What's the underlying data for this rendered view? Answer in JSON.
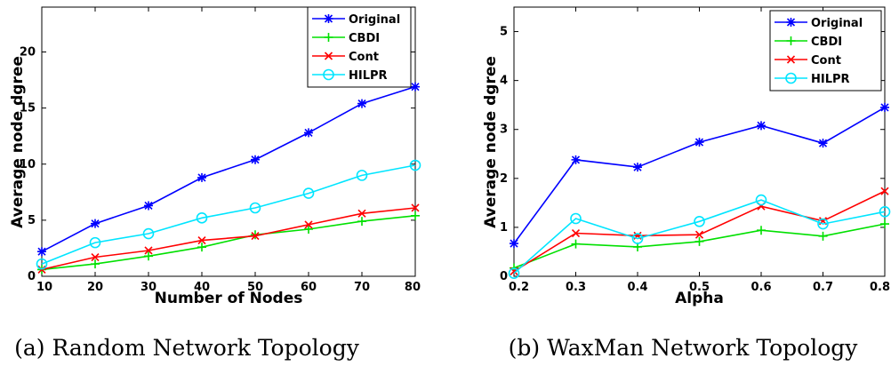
{
  "chart_data": [
    {
      "type": "line",
      "caption": "(a) Random Network Topology",
      "title": "",
      "xlabel": "Number of Nodes",
      "ylabel": "Average node dgree",
      "xlim": [
        10,
        80
      ],
      "ylim": [
        0,
        24
      ],
      "xticks": [
        10,
        20,
        30,
        40,
        50,
        60,
        70,
        80
      ],
      "yticks": [
        0,
        5,
        10,
        15,
        20
      ],
      "legend_position": "top-right",
      "grid": false,
      "x": [
        10,
        20,
        30,
        40,
        50,
        60,
        70,
        80
      ],
      "series": [
        {
          "name": "Original",
          "color": "#0000ff",
          "marker": "asterisk",
          "values": [
            2.2,
            4.7,
            6.3,
            8.8,
            10.4,
            12.8,
            15.4,
            16.9
          ]
        },
        {
          "name": "CBDI",
          "color": "#00e000",
          "marker": "plus",
          "values": [
            0.6,
            1.1,
            1.8,
            2.6,
            3.7,
            4.2,
            4.9,
            5.4
          ]
        },
        {
          "name": "Cont",
          "color": "#ff0000",
          "marker": "x",
          "values": [
            0.6,
            1.7,
            2.3,
            3.2,
            3.6,
            4.6,
            5.6,
            6.1
          ]
        },
        {
          "name": "HILPR",
          "color": "#00e5ff",
          "marker": "circle",
          "values": [
            1.1,
            3.0,
            3.8,
            5.2,
            6.1,
            7.4,
            9.0,
            9.9
          ]
        }
      ]
    },
    {
      "type": "line",
      "caption": "(b) WaxMan Network Topology",
      "title": "",
      "xlabel": "Alpha",
      "ylabel": "Average node dgree",
      "xlim": [
        0.2,
        0.8
      ],
      "ylim": [
        0,
        5.5
      ],
      "xticks": [
        0.2,
        0.3,
        0.4,
        0.5,
        0.6,
        0.7,
        0.8
      ],
      "yticks": [
        0,
        1,
        2,
        3,
        4,
        5
      ],
      "legend_position": "top-right",
      "grid": false,
      "x": [
        0.2,
        0.3,
        0.4,
        0.5,
        0.6,
        0.7,
        0.8
      ],
      "series": [
        {
          "name": "Original",
          "color": "#0000ff",
          "marker": "asterisk",
          "values": [
            0.67,
            2.38,
            2.23,
            2.74,
            3.08,
            2.72,
            3.45
          ]
        },
        {
          "name": "CBDI",
          "color": "#00e000",
          "marker": "plus",
          "values": [
            0.17,
            0.66,
            0.6,
            0.71,
            0.94,
            0.82,
            1.07
          ]
        },
        {
          "name": "Cont",
          "color": "#ff0000",
          "marker": "x",
          "values": [
            0.1,
            0.88,
            0.83,
            0.85,
            1.43,
            1.13,
            1.74
          ]
        },
        {
          "name": "HILPR",
          "color": "#00e5ff",
          "marker": "circle",
          "values": [
            0.06,
            1.18,
            0.77,
            1.12,
            1.56,
            1.07,
            1.32
          ]
        }
      ]
    }
  ]
}
